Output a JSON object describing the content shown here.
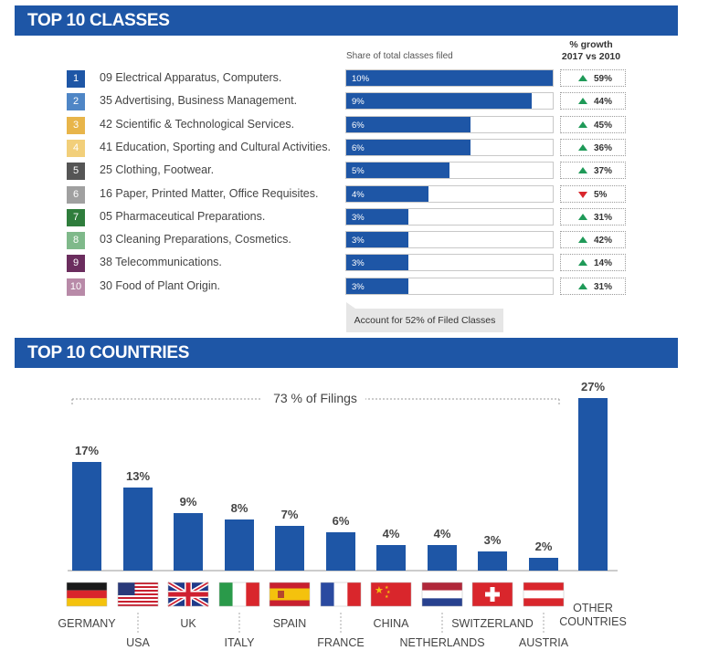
{
  "classes_section": {
    "title": "TOP 10 CLASSES",
    "share_header": "Share of total classes filed",
    "growth_header_line1": "% growth",
    "growth_header_line2": "2017 vs 2010",
    "footnote": "Account for 52% of Filed Classes",
    "rows": [
      {
        "rank": "1",
        "label": "09 Electrical Apparatus, Computers.",
        "share_text": "10%",
        "share": 10,
        "growth_text": "59%",
        "direction": "up",
        "badge_color": "#1e56a6"
      },
      {
        "rank": "2",
        "label": "35 Advertising, Business Management.",
        "share_text": "9%",
        "share": 9,
        "growth_text": "44%",
        "direction": "up",
        "badge_color": "#4f86c6"
      },
      {
        "rank": "3",
        "label": "42 Scientific & Technological Services.",
        "share_text": "6%",
        "share": 6,
        "growth_text": "45%",
        "direction": "up",
        "badge_color": "#e8b54a"
      },
      {
        "rank": "4",
        "label": "41 Education, Sporting and Cultural Activities.",
        "share_text": "6%",
        "share": 6,
        "growth_text": "36%",
        "direction": "up",
        "badge_color": "#f2cf7a"
      },
      {
        "rank": "5",
        "label": "25 Clothing, Footwear.",
        "share_text": "5%",
        "share": 5,
        "growth_text": "37%",
        "direction": "up",
        "badge_color": "#555555"
      },
      {
        "rank": "6",
        "label": "16 Paper, Printed Matter, Office Requisites.",
        "share_text": "4%",
        "share": 4,
        "growth_text": "5%",
        "direction": "down",
        "badge_color": "#a0a0a0"
      },
      {
        "rank": "7",
        "label": "05 Pharmaceutical Preparations.",
        "share_text": "3%",
        "share": 3,
        "growth_text": "31%",
        "direction": "up",
        "badge_color": "#2f7d3c"
      },
      {
        "rank": "8",
        "label": "03 Cleaning Preparations, Cosmetics.",
        "share_text": "3%",
        "share": 3,
        "growth_text": "42%",
        "direction": "up",
        "badge_color": "#7fb98a"
      },
      {
        "rank": "9",
        "label": "38 Telecommunications.",
        "share_text": "3%",
        "share": 3,
        "growth_text": "14%",
        "direction": "up",
        "badge_color": "#6b2d5e"
      },
      {
        "rank": "10",
        "label": "30 Food of Plant Origin.",
        "share_text": "3%",
        "share": 3,
        "growth_text": "31%",
        "direction": "up",
        "badge_color": "#b88aa8"
      }
    ]
  },
  "countries_section": {
    "title": "TOP 10 COUNTRIES",
    "bracket_label": "73 % of Filings"
  },
  "chart_data": {
    "type": "bar",
    "categories": [
      "GERMANY",
      "USA",
      "UK",
      "ITALY",
      "SPAIN",
      "FRANCE",
      "CHINA",
      "NETHERLANDS",
      "SWITZERLAND",
      "AUSTRIA",
      "OTHER COUNTRIES"
    ],
    "values": [
      17,
      13,
      9,
      8,
      7,
      6,
      4,
      4,
      3,
      2,
      27
    ],
    "value_labels": [
      "17%",
      "13%",
      "9%",
      "8%",
      "7%",
      "6%",
      "4%",
      "4%",
      "3%",
      "2%",
      "27%"
    ],
    "ylim": [
      0,
      27
    ],
    "bar_color": "#1e56a6",
    "grid": false,
    "flags": [
      "germany-flag",
      "usa-flag",
      "uk-flag",
      "italy-flag",
      "spain-flag",
      "france-flag",
      "china-flag",
      "netherlands-flag",
      "switzerland-flag",
      "austria-flag"
    ]
  }
}
